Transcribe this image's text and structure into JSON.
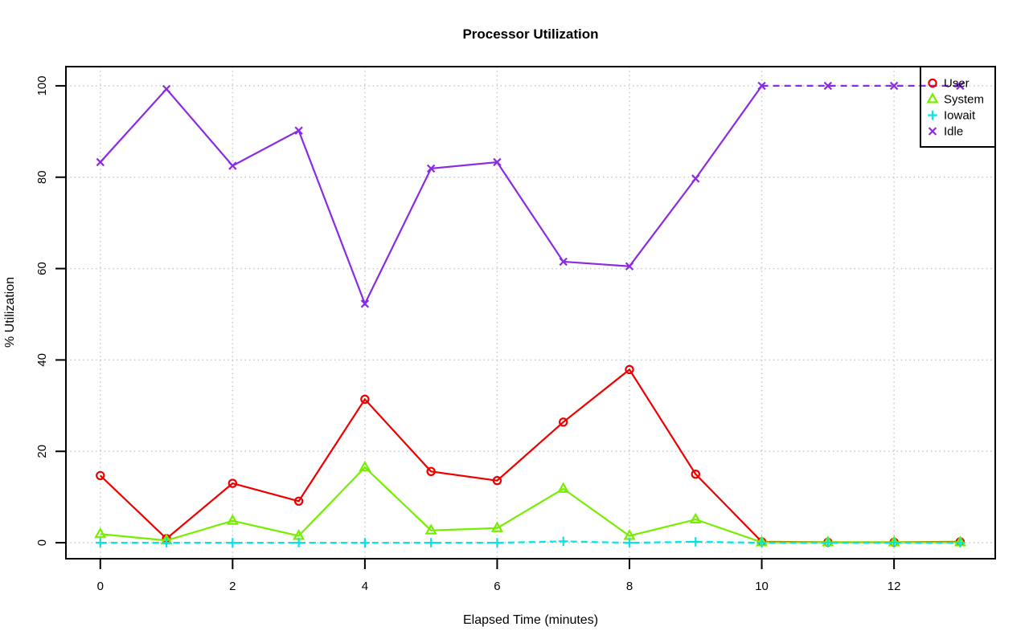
{
  "chart_data": {
    "type": "line",
    "title": "Processor Utilization",
    "xlabel": "Elapsed Time (minutes)",
    "ylabel": "% Utilization",
    "x": [
      0,
      1,
      2,
      3,
      4,
      5,
      6,
      7,
      8,
      9,
      10,
      11,
      12,
      13
    ],
    "x_ticks": [
      0,
      2,
      4,
      6,
      8,
      10,
      12
    ],
    "y_ticks": [
      0,
      20,
      40,
      60,
      80,
      100
    ],
    "xlim": [
      -0.52,
      13.53
    ],
    "ylim": [
      -3.5,
      104.2
    ],
    "grid": true,
    "grid_color": "#c8c8c8",
    "box_color": "#000000",
    "legend": {
      "position": "top-right"
    },
    "series": [
      {
        "name": "User",
        "color": "#ee0000",
        "marker": "circle",
        "linestyle": "solid",
        "values": [
          14.7,
          0.9,
          13.0,
          9.1,
          31.4,
          15.6,
          13.6,
          26.4,
          37.9,
          15.0,
          0.2,
          0.1,
          0.1,
          0.2
        ]
      },
      {
        "name": "System",
        "color": "#77ee00",
        "marker": "triangle",
        "linestyle": "solid",
        "values": [
          1.9,
          0.5,
          4.8,
          1.5,
          16.5,
          2.7,
          3.2,
          11.8,
          1.5,
          5.1,
          0.1,
          0.1,
          0.1,
          0.1
        ]
      },
      {
        "name": "Iowait",
        "color": "#00e6e6",
        "marker": "plus",
        "linestyle": "dashed",
        "values": [
          0,
          0,
          0,
          0,
          0,
          0,
          0,
          0.3,
          0,
          0.2,
          0,
          0,
          0,
          0
        ]
      },
      {
        "name": "Idle",
        "color": "#8a2be2",
        "marker": "x",
        "linestyle": "solid",
        "dashed_from_x": 10,
        "values": [
          83.3,
          99.3,
          82.5,
          90.2,
          52.3,
          81.9,
          83.3,
          61.5,
          60.5,
          79.7,
          100,
          100,
          100,
          100
        ]
      }
    ]
  }
}
